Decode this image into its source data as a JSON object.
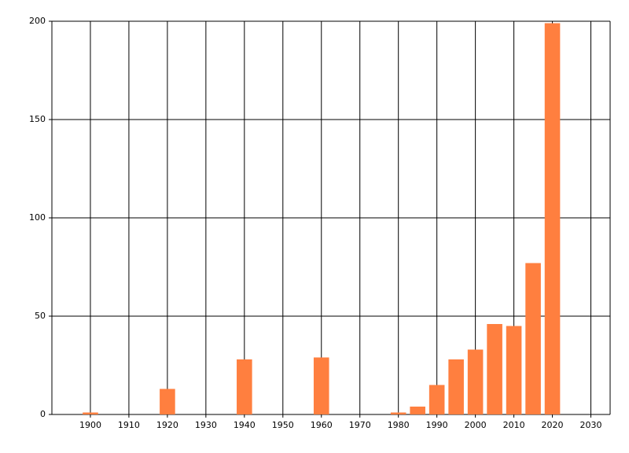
{
  "chart_data": {
    "type": "bar",
    "x": [
      1900,
      1920,
      1940,
      1960,
      1980,
      1985,
      1990,
      1995,
      2000,
      2005,
      2010,
      2015,
      2020
    ],
    "values": [
      1,
      13,
      28,
      29,
      1,
      4,
      15,
      28,
      33,
      46,
      45,
      77,
      199
    ],
    "color": "#ff7f3f",
    "xlim": [
      1890,
      2035
    ],
    "xticks": [
      1900,
      1910,
      1920,
      1930,
      1940,
      1950,
      1960,
      1970,
      1980,
      1990,
      2000,
      2010,
      2020,
      2030
    ],
    "ylim": [
      0,
      200
    ],
    "yticks": [
      0,
      50,
      100,
      150,
      200
    ],
    "grid": true
  }
}
